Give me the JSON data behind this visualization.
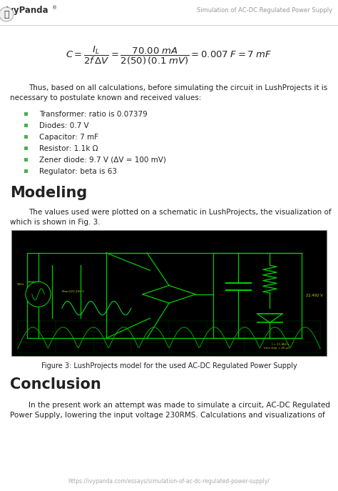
{
  "bg_color": "#ffffff",
  "header_title": "Simulation of AC-DC Regulated Power Supply",
  "para1_line1": "Thus, based on all calculations, before simulating the circuit in LushProjects it is",
  "para1_line2": "necessary to postulate known and received values:",
  "bullet_color": "#4caf50",
  "bullets": [
    "Transformer: ratio is 0.07379",
    "Diodes: 0.7 V",
    "Capacitor: 7 mF",
    "Resistor: 1.1k Ω",
    "Zener diode: 9.7 V (ΔV = 100 mV)",
    "Regulator: beta is 63"
  ],
  "section_modeling": "Modeling",
  "para2_line1": "The values used were plotted on a schematic in LushProjects, the visualization of",
  "para2_line2": "which is shown in Fig. 3.",
  "fig_caption": "Figure 3: LushProjects model for the used AC-DC Regulated Power Supply",
  "section_conclusion": "Conclusion",
  "para3_line1": "In the present work an attempt was made to simulate a circuit, AC-DC Regulated",
  "para3_line2": "Power Supply, lowering the input voltage 230RMS. Calculations and visualizations of",
  "footer_url": "https://ivypanda.com/essays/simulation-of-ac-dc-regulated-power-supply/",
  "text_color": "#222222",
  "header_color": "#999999",
  "section_font_size": 15,
  "body_font_size": 7.5,
  "header_font_size": 6,
  "footer_font_size": 5.5,
  "circuit_gc": "#00cc00",
  "circuit_yellow": "#cccc00"
}
